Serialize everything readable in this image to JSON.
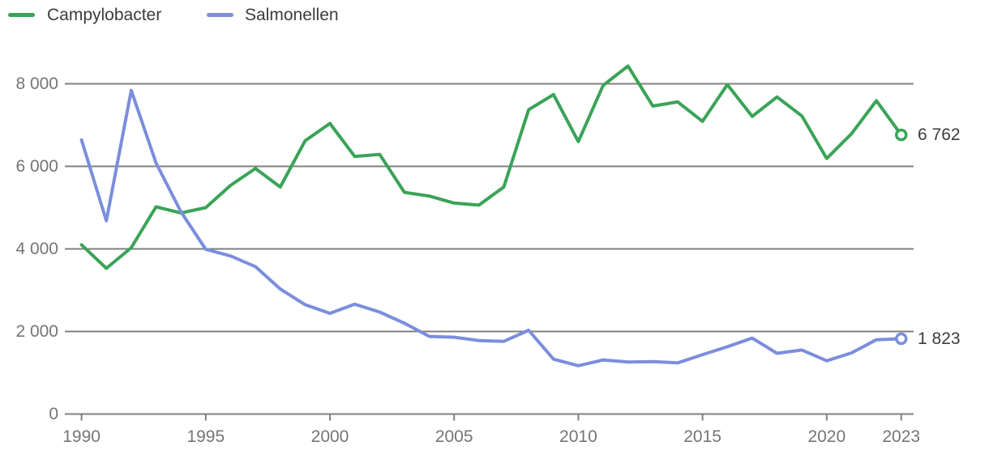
{
  "chart_data": {
    "type": "line",
    "x": [
      1990,
      1991,
      1992,
      1993,
      1994,
      1995,
      1996,
      1997,
      1998,
      1999,
      2000,
      2001,
      2002,
      2003,
      2004,
      2005,
      2006,
      2007,
      2008,
      2009,
      2010,
      2011,
      2012,
      2013,
      2014,
      2015,
      2016,
      2017,
      2018,
      2019,
      2020,
      2021,
      2022,
      2023
    ],
    "series": [
      {
        "name": "Campylobacter",
        "color": "#3aa357",
        "values": [
          4100,
          3530,
          4030,
          5020,
          4870,
          5000,
          5540,
          5950,
          5500,
          6620,
          7040,
          6240,
          6290,
          5370,
          5280,
          5110,
          5060,
          5500,
          7370,
          7740,
          6600,
          7960,
          8430,
          7460,
          7560,
          7090,
          7980,
          7210,
          7680,
          7220,
          6190,
          6790,
          7590,
          6762
        ],
        "end_label": "6 762"
      },
      {
        "name": "Salmonellen",
        "color": "#7b8edc",
        "values": [
          6640,
          4680,
          7840,
          6080,
          4900,
          3990,
          3830,
          3570,
          3030,
          2650,
          2440,
          2660,
          2470,
          2200,
          1880,
          1860,
          1780,
          1760,
          2030,
          1330,
          1170,
          1310,
          1260,
          1270,
          1240,
          1440,
          1630,
          1840,
          1470,
          1550,
          1290,
          1480,
          1800,
          1823
        ],
        "end_label": "1 823"
      }
    ],
    "title": "",
    "xlabel": "",
    "ylabel": "",
    "ylim": [
      0,
      8000
    ],
    "yticks": [
      0,
      2000,
      4000,
      6000,
      8000
    ],
    "ytick_labels": [
      "0",
      "2 000",
      "4 000",
      "6 000",
      "8 000"
    ],
    "xticks": [
      1990,
      1995,
      2000,
      2005,
      2010,
      2015,
      2020,
      2023
    ],
    "xtick_labels": [
      "1990",
      "1995",
      "2000",
      "2005",
      "2010",
      "2015",
      "2020",
      "2023"
    ],
    "grid": true,
    "legend_position": "top-left"
  },
  "colors": {
    "campylobacter_line": "#3aa357",
    "salmonellen_line": "#7b8edc",
    "gridline": "#7f7f7f",
    "axis_text": "#757575",
    "legend_text": "#3c3c3c",
    "end_label_text": "#3c3c3c",
    "marker_fill": "#ffffff"
  }
}
